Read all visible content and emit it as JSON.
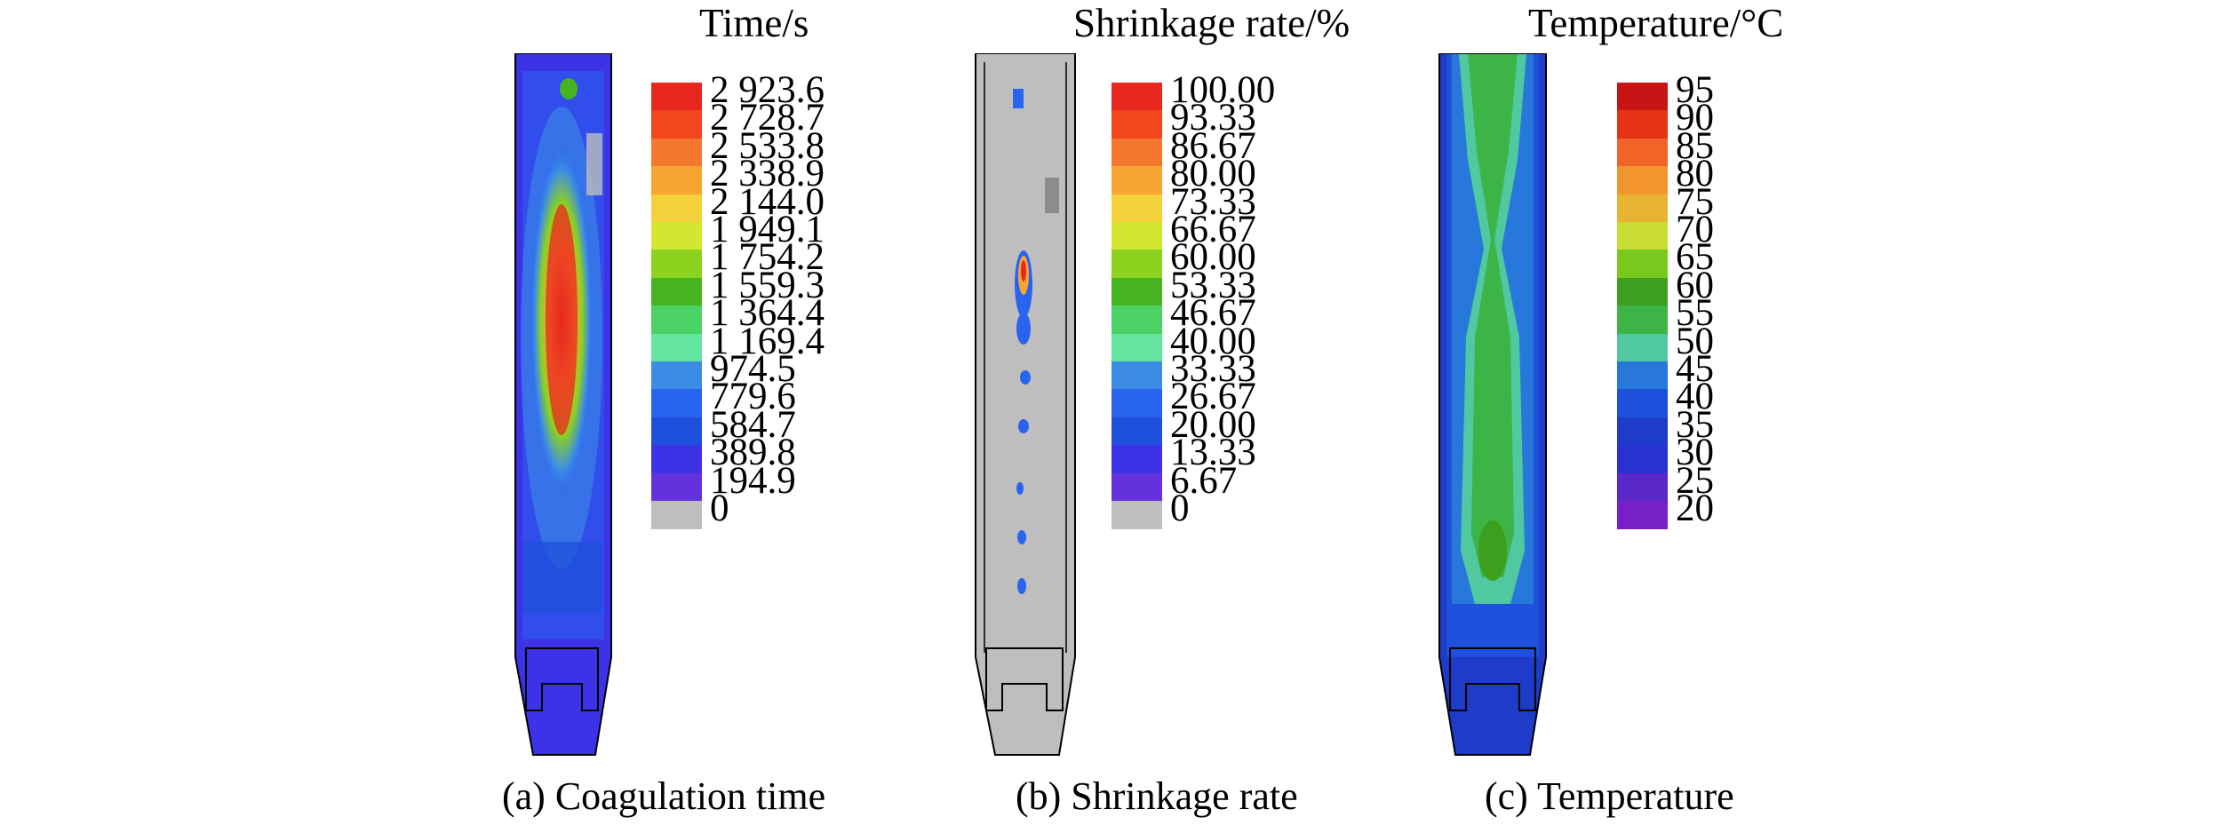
{
  "panels": [
    {
      "id": "a",
      "legend_title": "Time/s",
      "caption": "(a) Coagulation time",
      "ticks": [
        "2 923.6",
        "2 728.7",
        "2 533.8",
        "2 338.9",
        "2 144.0",
        "1 949.1",
        "1 754.2",
        "1 559.3",
        "1 364.4",
        "1 169.4",
        "974.5",
        "779.6",
        "584.7",
        "389.8",
        "194.9",
        "0"
      ],
      "colors": [
        "#e8281e",
        "#f2461e",
        "#f5782e",
        "#f7a532",
        "#f5d23c",
        "#d2e632",
        "#8cd21e",
        "#46b41e",
        "#4bd264",
        "#64e6a0",
        "#3c8ce6",
        "#2864f0",
        "#1e50dc",
        "#3c32e6",
        "#6432dc",
        "#bebebe"
      ]
    },
    {
      "id": "b",
      "legend_title": "Shrinkage rate/%",
      "caption": "(b) Shrinkage rate",
      "ticks": [
        "100.00",
        "93.33",
        "86.67",
        "80.00",
        "73.33",
        "66.67",
        "60.00",
        "53.33",
        "46.67",
        "40.00",
        "33.33",
        "26.67",
        "20.00",
        "13.33",
        "6.67",
        "0"
      ],
      "colors": [
        "#e8281e",
        "#f2461e",
        "#f5782e",
        "#f7a532",
        "#f5d23c",
        "#d2e632",
        "#8cd21e",
        "#46b41e",
        "#4bd264",
        "#64e6a0",
        "#3c8ce6",
        "#2864f0",
        "#1e50dc",
        "#3c32e6",
        "#6432dc",
        "#bebebe"
      ]
    },
    {
      "id": "c",
      "legend_title": "Temperature/°C",
      "caption": "(c) Temperature",
      "ticks": [
        "95",
        "90",
        "85",
        "80",
        "75",
        "70",
        "65",
        "60",
        "55",
        "50",
        "45",
        "40",
        "35",
        "30",
        "25",
        "20"
      ],
      "colors": [
        "#c81414",
        "#e63214",
        "#f06428",
        "#f0962d",
        "#e6b432",
        "#c8dc32",
        "#78c81e",
        "#3ca01e",
        "#3cb446",
        "#50c8a0",
        "#2878dc",
        "#1e50dc",
        "#1e3cc8",
        "#2832d2",
        "#5a28c8",
        "#7820c8"
      ]
    }
  ]
}
